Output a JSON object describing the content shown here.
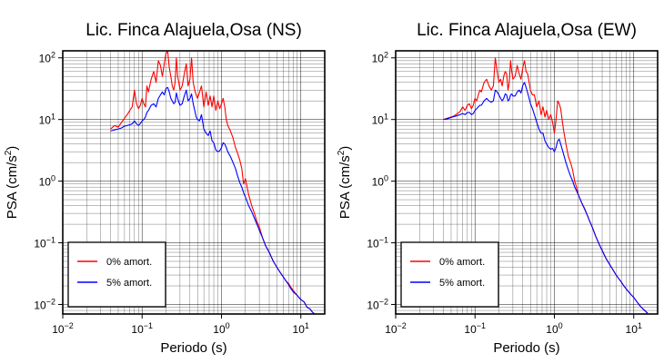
{
  "chart_data": [
    {
      "type": "line",
      "title": "Lic. Finca Alajuela,Osa (NS)",
      "xlabel": "Periodo (s)",
      "ylabel": {
        "base": "PSA (cm/s",
        "sup": "2",
        "end": ")"
      },
      "x_scale": "log",
      "y_scale": "log",
      "xlim": [
        0.01,
        20
      ],
      "ylim": [
        0.007,
        130
      ],
      "x_ticks": [
        {
          "base": "10",
          "exp": "−2"
        },
        {
          "base": "10",
          "exp": "−1"
        },
        {
          "base": "10",
          "exp": "0"
        },
        {
          "base": "10",
          "exp": "1"
        }
      ],
      "y_ticks": [
        {
          "base": "10",
          "exp": "−2"
        },
        {
          "base": "10",
          "exp": "−1"
        },
        {
          "base": "10",
          "exp": "0"
        },
        {
          "base": "10",
          "exp": "1"
        },
        {
          "base": "10",
          "exp": "2"
        }
      ],
      "grid": true,
      "legend_placement": "lower-left",
      "series": [
        {
          "name": "0% amort.",
          "color": "#ff0000",
          "x": [
            0.04,
            0.045,
            0.05,
            0.055,
            0.06,
            0.065,
            0.07,
            0.075,
            0.08,
            0.085,
            0.09,
            0.095,
            0.1,
            0.105,
            0.11,
            0.115,
            0.12,
            0.13,
            0.14,
            0.15,
            0.16,
            0.17,
            0.18,
            0.19,
            0.2,
            0.21,
            0.22,
            0.23,
            0.24,
            0.25,
            0.26,
            0.27,
            0.28,
            0.29,
            0.3,
            0.32,
            0.34,
            0.36,
            0.38,
            0.4,
            0.42,
            0.44,
            0.46,
            0.48,
            0.5,
            0.53,
            0.56,
            0.6,
            0.64,
            0.68,
            0.72,
            0.76,
            0.8,
            0.85,
            0.9,
            0.95,
            1.0,
            1.05,
            1.1,
            1.15,
            1.2,
            1.3,
            1.4,
            1.5,
            1.6,
            1.7,
            1.8,
            1.9,
            2.0,
            2.2,
            2.4,
            2.6,
            2.8,
            3.0,
            3.3,
            3.6,
            4.0,
            4.5,
            5.0,
            5.5,
            6.0,
            6.5,
            7.0,
            7.5,
            8.0,
            9.0,
            10.0,
            11.0,
            12.0,
            13.0,
            14.0,
            15.0
          ],
          "y": [
            7.0,
            8.0,
            7.5,
            9.0,
            10.5,
            12.0,
            14.0,
            16.0,
            30.0,
            18.0,
            15.0,
            17.0,
            22.0,
            18.0,
            16.0,
            35.0,
            28.0,
            45.0,
            60.0,
            40.0,
            90.0,
            75.0,
            50.0,
            80.0,
            120.0,
            125.0,
            70.0,
            50.0,
            35.0,
            30.0,
            40.0,
            100.0,
            50.0,
            40.0,
            30.0,
            35.0,
            55.0,
            80.0,
            35.0,
            45.0,
            100.0,
            40.0,
            30.0,
            25.0,
            22.0,
            28.0,
            35.0,
            16.0,
            28.0,
            17.0,
            24.0,
            16.0,
            24.0,
            14.0,
            20.0,
            15.0,
            18.0,
            22.0,
            16.0,
            10.0,
            8.0,
            6.5,
            5.0,
            3.5,
            2.8,
            2.2,
            1.6,
            0.9,
            1.1,
            0.6,
            0.4,
            0.3,
            0.22,
            0.18,
            0.12,
            0.09,
            0.07,
            0.05,
            0.04,
            0.033,
            0.028,
            0.024,
            0.022,
            0.019,
            0.017,
            0.014,
            0.012,
            0.011,
            0.009,
            0.0085,
            0.0075,
            0.007
          ]
        },
        {
          "name": "5% amort.",
          "color": "#0000ff",
          "x": [
            0.04,
            0.045,
            0.05,
            0.055,
            0.06,
            0.065,
            0.07,
            0.075,
            0.08,
            0.085,
            0.09,
            0.095,
            0.1,
            0.105,
            0.11,
            0.115,
            0.12,
            0.13,
            0.14,
            0.15,
            0.16,
            0.17,
            0.18,
            0.19,
            0.2,
            0.21,
            0.22,
            0.23,
            0.24,
            0.25,
            0.26,
            0.27,
            0.28,
            0.29,
            0.3,
            0.32,
            0.34,
            0.36,
            0.38,
            0.4,
            0.42,
            0.44,
            0.46,
            0.48,
            0.5,
            0.53,
            0.56,
            0.6,
            0.64,
            0.68,
            0.72,
            0.76,
            0.8,
            0.85,
            0.9,
            0.95,
            1.0,
            1.05,
            1.1,
            1.15,
            1.2,
            1.3,
            1.4,
            1.5,
            1.6,
            1.7,
            1.8,
            1.9,
            2.0,
            2.2,
            2.4,
            2.6,
            2.8,
            3.0,
            3.3,
            3.6,
            4.0,
            4.5,
            5.0,
            5.5,
            6.0,
            6.5,
            7.0,
            7.5,
            8.0,
            9.0,
            10.0,
            11.0,
            12.0,
            13.0,
            14.0,
            15.0
          ],
          "y": [
            6.5,
            6.8,
            7.0,
            7.3,
            7.8,
            8.0,
            8.2,
            8.5,
            9.5,
            8.5,
            8.0,
            8.6,
            9.5,
            10.0,
            11.0,
            13.0,
            14.0,
            17.0,
            18.0,
            16.0,
            22.0,
            25.0,
            28.0,
            25.0,
            32.0,
            33.0,
            28.0,
            22.0,
            20.0,
            18.0,
            19.0,
            27.0,
            22.0,
            19.0,
            17.0,
            18.0,
            24.0,
            30.0,
            20.0,
            22.0,
            26.0,
            18.0,
            14.0,
            11.0,
            10.0,
            9.5,
            12.0,
            7.0,
            6.0,
            5.5,
            6.5,
            4.5,
            4.2,
            3.2,
            3.0,
            3.1,
            3.5,
            4.2,
            4.0,
            3.5,
            3.0,
            2.5,
            2.0,
            1.6,
            1.2,
            0.95,
            0.8,
            0.65,
            0.55,
            0.4,
            0.32,
            0.25,
            0.2,
            0.16,
            0.12,
            0.09,
            0.07,
            0.05,
            0.04,
            0.033,
            0.028,
            0.024,
            0.021,
            0.018,
            0.016,
            0.014,
            0.012,
            0.011,
            0.009,
            0.0085,
            0.0075,
            0.007
          ]
        }
      ]
    },
    {
      "type": "line",
      "title": "Lic. Finca Alajuela,Osa (EW)",
      "xlabel": "Periodo (s)",
      "ylabel": {
        "base": "PSA (cm/s",
        "sup": "2",
        "end": ")"
      },
      "x_scale": "log",
      "y_scale": "log",
      "xlim": [
        0.01,
        20
      ],
      "ylim": [
        0.007,
        130
      ],
      "x_ticks": [
        {
          "base": "10",
          "exp": "−2"
        },
        {
          "base": "10",
          "exp": "−1"
        },
        {
          "base": "10",
          "exp": "0"
        },
        {
          "base": "10",
          "exp": "1"
        }
      ],
      "y_ticks": [
        {
          "base": "10",
          "exp": "−2"
        },
        {
          "base": "10",
          "exp": "−1"
        },
        {
          "base": "10",
          "exp": "0"
        },
        {
          "base": "10",
          "exp": "1"
        },
        {
          "base": "10",
          "exp": "2"
        }
      ],
      "grid": true,
      "legend_placement": "lower-left",
      "series": [
        {
          "name": "0% amort.",
          "color": "#ff0000",
          "x": [
            0.04,
            0.045,
            0.05,
            0.055,
            0.06,
            0.065,
            0.07,
            0.075,
            0.08,
            0.085,
            0.09,
            0.095,
            0.1,
            0.105,
            0.11,
            0.115,
            0.12,
            0.13,
            0.14,
            0.15,
            0.16,
            0.17,
            0.18,
            0.19,
            0.2,
            0.21,
            0.22,
            0.23,
            0.24,
            0.25,
            0.26,
            0.27,
            0.28,
            0.29,
            0.3,
            0.32,
            0.34,
            0.36,
            0.38,
            0.4,
            0.42,
            0.44,
            0.46,
            0.48,
            0.5,
            0.53,
            0.56,
            0.6,
            0.64,
            0.68,
            0.72,
            0.76,
            0.8,
            0.85,
            0.9,
            0.95,
            1.0,
            1.05,
            1.1,
            1.15,
            1.2,
            1.3,
            1.4,
            1.5,
            1.6,
            1.7,
            1.8,
            1.9,
            2.0,
            2.2,
            2.4,
            2.6,
            2.8,
            3.0,
            3.3,
            3.6,
            4.0,
            4.5,
            5.0,
            5.5,
            6.0,
            6.5,
            7.0,
            7.5,
            8.0,
            9.0,
            10.0,
            11.0,
            12.0,
            13.0,
            14.0,
            15.0
          ],
          "y": [
            10.0,
            10.5,
            11.0,
            11.5,
            12.5,
            13.5,
            16.0,
            14.0,
            17.0,
            18.0,
            15.0,
            17.0,
            22.0,
            20.0,
            25.0,
            30.0,
            28.0,
            40.0,
            45.0,
            35.0,
            30.0,
            35.0,
            100.0,
            60.0,
            40.0,
            45.0,
            35.0,
            50.0,
            60.0,
            55.0,
            30.0,
            40.0,
            90.0,
            60.0,
            45.0,
            50.0,
            75.0,
            55.0,
            45.0,
            70.0,
            90.0,
            60.0,
            55.0,
            40.0,
            30.0,
            25.0,
            25.0,
            16.0,
            20.0,
            12.0,
            16.0,
            11.0,
            14.0,
            10.0,
            12.0,
            9.0,
            6.0,
            10.0,
            20.0,
            18.0,
            15.0,
            7.0,
            4.0,
            2.5,
            2.0,
            1.5,
            1.0,
            0.8,
            0.6,
            0.45,
            0.35,
            0.28,
            0.22,
            0.18,
            0.13,
            0.1,
            0.075,
            0.055,
            0.044,
            0.036,
            0.03,
            0.026,
            0.023,
            0.02,
            0.018,
            0.015,
            0.013,
            0.011,
            0.0095,
            0.0085,
            0.0078,
            0.0072
          ]
        },
        {
          "name": "5% amort.",
          "color": "#0000ff",
          "x": [
            0.04,
            0.045,
            0.05,
            0.055,
            0.06,
            0.065,
            0.07,
            0.075,
            0.08,
            0.085,
            0.09,
            0.095,
            0.1,
            0.105,
            0.11,
            0.115,
            0.12,
            0.13,
            0.14,
            0.15,
            0.16,
            0.17,
            0.18,
            0.19,
            0.2,
            0.21,
            0.22,
            0.23,
            0.24,
            0.25,
            0.26,
            0.27,
            0.28,
            0.29,
            0.3,
            0.32,
            0.34,
            0.36,
            0.38,
            0.4,
            0.42,
            0.44,
            0.46,
            0.48,
            0.5,
            0.53,
            0.56,
            0.6,
            0.64,
            0.68,
            0.72,
            0.76,
            0.8,
            0.85,
            0.9,
            0.95,
            1.0,
            1.05,
            1.1,
            1.15,
            1.2,
            1.3,
            1.4,
            1.5,
            1.6,
            1.7,
            1.8,
            1.9,
            2.0,
            2.2,
            2.4,
            2.6,
            2.8,
            3.0,
            3.3,
            3.6,
            4.0,
            4.5,
            5.0,
            5.5,
            6.0,
            6.5,
            7.0,
            7.5,
            8.0,
            9.0,
            10.0,
            11.0,
            12.0,
            13.0,
            14.0,
            15.0
          ],
          "y": [
            10.0,
            10.3,
            10.8,
            11.2,
            11.6,
            12.0,
            12.5,
            12.0,
            13.0,
            13.0,
            12.0,
            12.5,
            14.0,
            15.0,
            16.0,
            17.0,
            17.0,
            20.0,
            22.0,
            20.0,
            19.0,
            20.0,
            30.0,
            28.0,
            25.0,
            22.0,
            20.0,
            22.0,
            26.0,
            25.0,
            20.0,
            21.0,
            25.0,
            26.0,
            24.0,
            24.0,
            28.0,
            30.0,
            27.0,
            36.0,
            40.0,
            33.0,
            27.0,
            22.0,
            18.0,
            15.0,
            12.0,
            9.0,
            7.0,
            6.0,
            6.0,
            4.5,
            4.0,
            3.5,
            3.3,
            3.4,
            3.0,
            3.5,
            4.5,
            4.8,
            4.0,
            2.8,
            2.0,
            1.5,
            1.2,
            1.0,
            0.8,
            0.7,
            0.6,
            0.45,
            0.36,
            0.28,
            0.22,
            0.18,
            0.13,
            0.1,
            0.075,
            0.055,
            0.044,
            0.036,
            0.03,
            0.026,
            0.023,
            0.02,
            0.018,
            0.015,
            0.013,
            0.011,
            0.0095,
            0.0085,
            0.0078,
            0.0072
          ]
        }
      ]
    }
  ]
}
